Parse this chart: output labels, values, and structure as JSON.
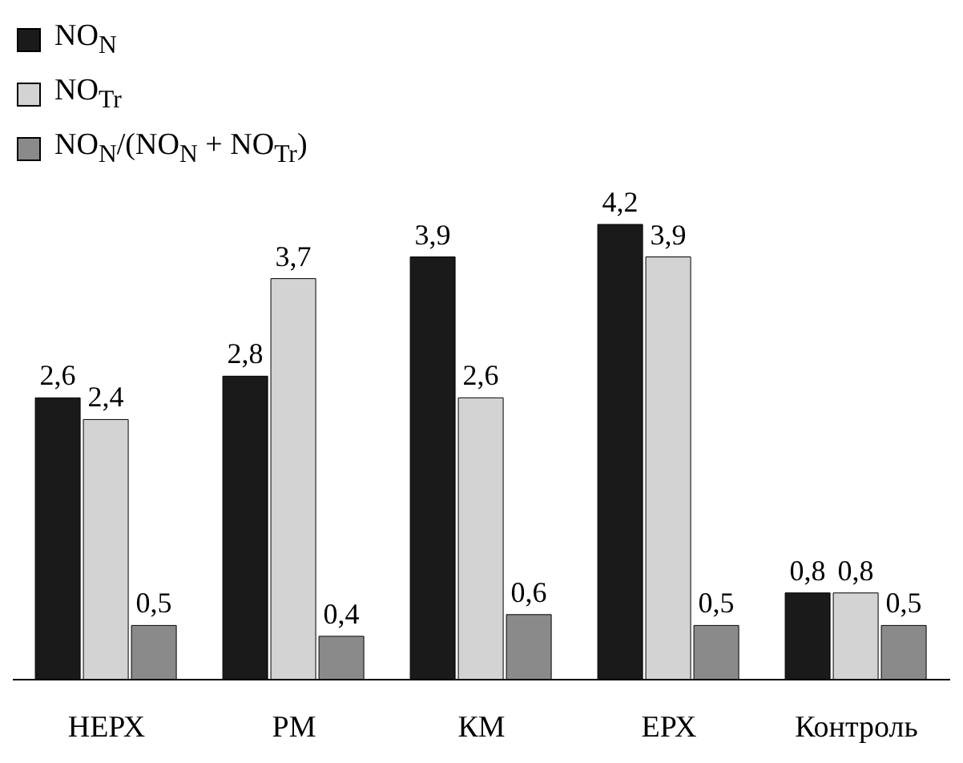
{
  "chart_data": {
    "type": "bar",
    "categories": [
      "НЕРХ",
      "РМ",
      "КМ",
      "ЕРХ",
      "Контроль"
    ],
    "series": [
      {
        "name": "NO$_{N}$",
        "color": "#1a1a1a",
        "values": [
          2.6,
          2.8,
          3.9,
          4.2,
          0.8
        ],
        "value_labels": [
          "2,6",
          "2,8",
          "3,9",
          "4,2",
          "0,8"
        ]
      },
      {
        "name": "NO$_{Tr}$",
        "color": "#d3d3d3",
        "values": [
          2.4,
          3.7,
          2.6,
          3.9,
          0.8
        ],
        "value_labels": [
          "2,4",
          "3,7",
          "2,6",
          "3,9",
          "0,8"
        ]
      },
      {
        "name": "NO$_{N}$/(NO$_{N}$ + NO$_{Tr}$)",
        "color": "#8a8a8a",
        "values": [
          0.5,
          0.4,
          0.6,
          0.5,
          0.5
        ],
        "value_labels": [
          "0,5",
          "0,4",
          "0,6",
          "0,5",
          "0,5"
        ]
      }
    ],
    "legend": "top left",
    "grid": false
  }
}
